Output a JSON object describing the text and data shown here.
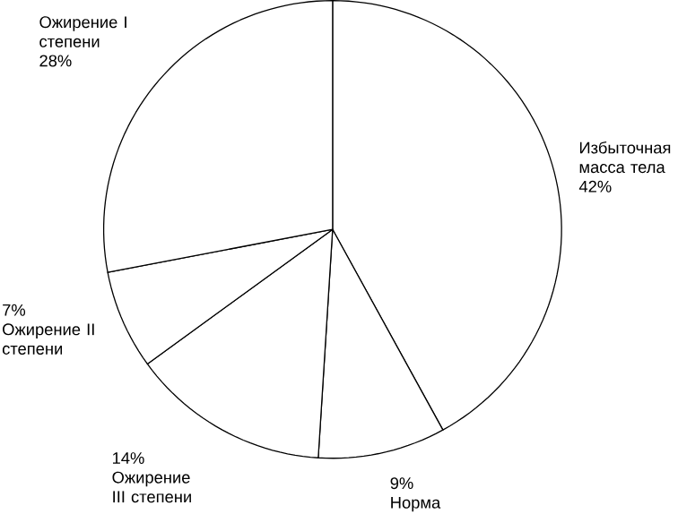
{
  "chart_data": {
    "type": "pie",
    "categories": [
      "Избыточная масса тела",
      "Норма",
      "Ожирение III степени",
      "Ожирение II степени",
      "Ожирение I степени"
    ],
    "values": [
      42,
      9,
      14,
      7,
      28
    ],
    "value_labels": [
      "42%",
      "9%",
      "14%",
      "7%",
      "28%"
    ],
    "colors": [
      "#ffffff",
      "#ffffff",
      "#ffffff",
      "#ffffff",
      "#ffffff"
    ]
  }
}
